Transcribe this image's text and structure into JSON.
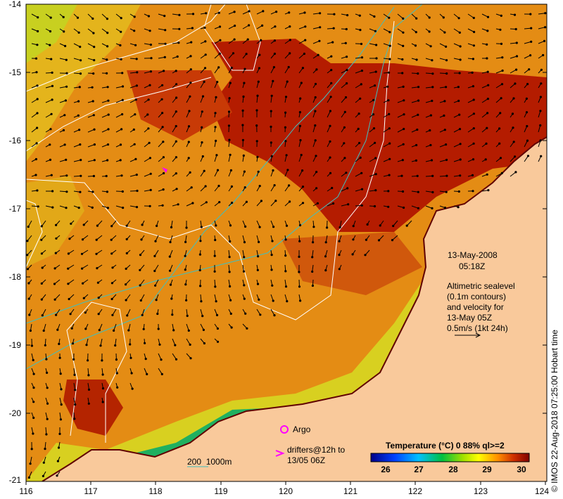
{
  "axes": {
    "lat_ticks": [
      "-14",
      "-15",
      "-16",
      "-17",
      "-18",
      "-19",
      "-20",
      "-21"
    ],
    "lon_ticks": [
      "116",
      "117",
      "118",
      "119",
      "120",
      "121",
      "122",
      "123",
      "124"
    ]
  },
  "annotations": {
    "date": "13-May-2008",
    "time": "05:18Z",
    "sealevel_lines": [
      "Altimetric sealevel",
      "(0.1m contours)",
      "and velocity for",
      "13-May 05Z",
      "0.5m/s (1kt 24h)"
    ],
    "argo_label": "Argo",
    "drifters_lines": [
      "drifters@12h to",
      "13/05 06Z"
    ],
    "bathy_label": "200  1000m"
  },
  "colorbar": {
    "title": "Temperature (°C) 0 88% ql>=2",
    "ticks": [
      "26",
      "27",
      "28",
      "29",
      "30"
    ]
  },
  "copyright": "© IMOS 22-Aug-2018 07:25:00 Hobart time",
  "colors": {
    "land": "#f9c99b",
    "warm_water": "#e68a10",
    "hot_water": "#b01a00",
    "cool_water": "#d8d800",
    "bathy_contour": "#3fc0c0",
    "sealevel_contour": "#ffffff",
    "argo": "#ff00ff"
  }
}
